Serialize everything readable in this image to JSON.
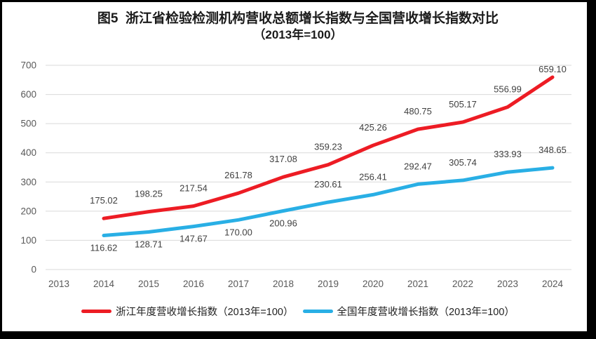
{
  "figure_title": "图5  浙江省检验检测机构营收总额增长指数与全国营收增长指数对比",
  "figure_subtitle": "（2013年=100）",
  "colors": {
    "zhejiang_line": "#ED1C24",
    "national_line": "#29AFE5",
    "gridline": "#D9D9D9",
    "tick_text": "#595959",
    "data_label_text": "#404040",
    "frame": "#000000",
    "background": "#FFFFFF"
  },
  "chart_data": {
    "type": "line",
    "x_labels": [
      "2013",
      "2014",
      "2015",
      "2016",
      "2017",
      "2018",
      "2019",
      "2020",
      "2021",
      "2022",
      "2023",
      "2024"
    ],
    "ylim": [
      0,
      700
    ],
    "ytick_step": 100,
    "ytick_labels": [
      "0",
      "100",
      "200",
      "300",
      "400",
      "500",
      "600",
      "700"
    ],
    "grid": true,
    "legend_position": "bottom",
    "series": [
      {
        "name": "浙江年度营收增长指数（2013年=100）",
        "color": "#ED1C24",
        "start_x": "2014",
        "values": [
          175.02,
          198.25,
          217.54,
          261.78,
          317.08,
          359.23,
          425.26,
          480.75,
          505.17,
          556.99,
          659.1
        ],
        "labels": [
          "175.02",
          "198.25",
          "217.54",
          "261.78",
          "317.08",
          "359.23",
          "425.26",
          "480.75",
          "505.17",
          "556.99",
          "659.10"
        ],
        "label_side": [
          "above",
          "above",
          "above",
          "above",
          "above",
          "above",
          "above",
          "above",
          "above",
          "above",
          "above"
        ]
      },
      {
        "name": "全国年度营收增长指数（2013年=100）",
        "color": "#29AFE5",
        "start_x": "2014",
        "values": [
          116.62,
          128.71,
          147.67,
          170.0,
          200.96,
          230.61,
          256.41,
          292.47,
          305.74,
          333.93,
          348.65
        ],
        "labels": [
          "116.62",
          "128.71",
          "147.67",
          "170.00",
          "200.96",
          "230.61",
          "256.41",
          "292.47",
          "305.74",
          "333.93",
          "348.65"
        ],
        "label_side": [
          "below",
          "below",
          "below",
          "below",
          "below",
          "above",
          "above",
          "above",
          "above",
          "above",
          "above"
        ]
      }
    ]
  }
}
